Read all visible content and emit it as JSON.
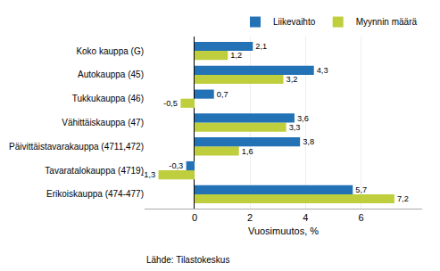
{
  "chart_data": {
    "type": "bar",
    "orientation": "horizontal",
    "categories": [
      "Erikoiskauppa (474-477)",
      "Tavaratalokauppa (4719)",
      "Päivittäistavarakauppa (4711,472)",
      "Vähittäiskauppa (47)",
      "Tukkukauppa (46)",
      "Autokauppa (45)",
      "Koko kauppa (G)"
    ],
    "series": [
      {
        "name": "Liikevaihto",
        "color": "#2272B5",
        "values": [
          5.7,
          -0.3,
          3.8,
          3.6,
          0.7,
          4.3,
          2.1
        ],
        "value_labels": [
          "5,7",
          "-0,3",
          "3,8",
          "3,6",
          "0,7",
          "4,3",
          "2,1"
        ]
      },
      {
        "name": "Myynnin määrä",
        "color": "#BFCE3C",
        "values": [
          7.2,
          -1.3,
          1.6,
          3.3,
          -0.5,
          3.2,
          1.2
        ],
        "value_labels": [
          "7,2",
          "-1,3",
          "1,6",
          "3,3",
          "-0,5",
          "3,2",
          "1,2"
        ]
      }
    ],
    "x_label": "Vuosimuutos, %",
    "xlim": [
      -1.8,
      8.2
    ],
    "xticks": [
      0,
      2,
      4,
      6
    ],
    "grid": true,
    "legend": "upper right",
    "data_labels": true,
    "annotations": [
      "Lähde: Tilastokeskus"
    ]
  }
}
